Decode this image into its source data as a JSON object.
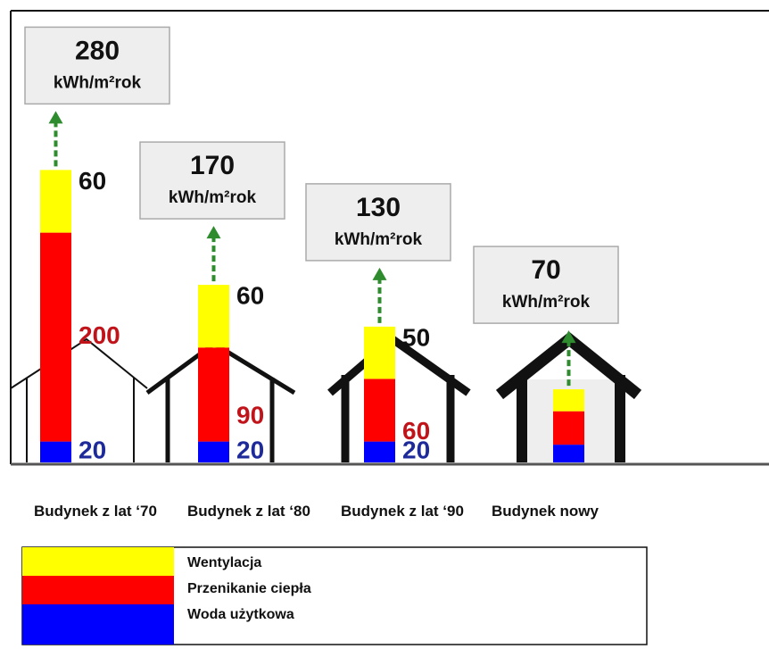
{
  "chart_data": {
    "type": "stacked-bar",
    "unit": "kWh/m²rok",
    "categories": [
      "Budynek z lat ‘70",
      "Budynek z lat ‘80",
      "Budynek z lat ‘90",
      "Budynek nowy"
    ],
    "totals": [
      280,
      170,
      130,
      70
    ],
    "series": [
      {
        "name": "Woda użytkowa",
        "color": "#0000ff",
        "label_color": "#1f2a9a",
        "values": [
          20,
          20,
          20,
          17
        ],
        "value_labels": [
          "20",
          "20",
          "20",
          null
        ]
      },
      {
        "name": "Przenikanie ciepła",
        "color": "#ff0000",
        "label_color": "#c0141a",
        "values": [
          200,
          90,
          60,
          32
        ],
        "value_labels": [
          "200",
          "90",
          "60",
          null
        ]
      },
      {
        "name": "Wentylacja",
        "color": "#ffff00",
        "label_color": "#111111",
        "values": [
          60,
          60,
          50,
          21
        ],
        "value_labels": [
          "60",
          "60",
          "50",
          null
        ]
      }
    ]
  }
}
